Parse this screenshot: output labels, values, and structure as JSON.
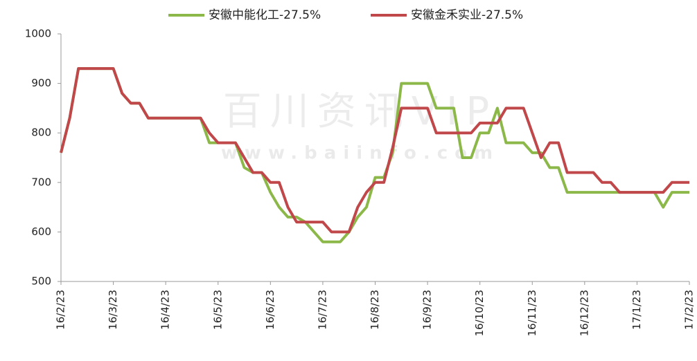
{
  "chart_data": {
    "type": "line",
    "watermark": [
      "百川资讯VIP",
      "www.baiinfo.com"
    ],
    "categories": [
      "16/2/23",
      null,
      null,
      null,
      null,
      null,
      "16/3/23",
      null,
      null,
      null,
      null,
      null,
      "16/4/23",
      null,
      null,
      null,
      null,
      null,
      "16/5/23",
      null,
      null,
      null,
      null,
      null,
      "16/6/23",
      null,
      null,
      null,
      null,
      null,
      "16/7/23",
      null,
      null,
      null,
      null,
      null,
      "16/8/23",
      null,
      null,
      null,
      null,
      null,
      "16/9/23",
      null,
      null,
      null,
      null,
      null,
      "16/10/23",
      null,
      null,
      null,
      null,
      null,
      "16/11/23",
      null,
      null,
      null,
      null,
      null,
      "16/12/23",
      null,
      null,
      null,
      null,
      null,
      "17/1/23",
      null,
      null,
      null,
      null,
      null,
      "17/2/23"
    ],
    "series": [
      {
        "name": "安徽中能化工-27.5%",
        "color": "#8cb84a",
        "values": [
          760,
          830,
          930,
          930,
          930,
          930,
          930,
          880,
          860,
          860,
          830,
          830,
          830,
          830,
          830,
          830,
          830,
          780,
          780,
          780,
          780,
          730,
          720,
          720,
          680,
          650,
          630,
          630,
          620,
          600,
          580,
          580,
          580,
          600,
          630,
          650,
          710,
          710,
          760,
          900,
          900,
          900,
          900,
          850,
          850,
          850,
          750,
          750,
          800,
          800,
          850,
          780,
          780,
          780,
          760,
          760,
          730,
          730,
          680,
          680,
          680,
          680,
          680,
          680,
          680,
          680,
          680,
          680,
          680,
          650,
          680,
          680,
          680
        ]
      },
      {
        "name": "安徽金禾实业-27.5%",
        "color": "#c0474a",
        "values": [
          760,
          830,
          930,
          930,
          930,
          930,
          930,
          880,
          860,
          860,
          830,
          830,
          830,
          830,
          830,
          830,
          830,
          800,
          780,
          780,
          780,
          750,
          720,
          720,
          700,
          700,
          650,
          620,
          620,
          620,
          620,
          600,
          600,
          600,
          650,
          680,
          700,
          700,
          770,
          850,
          850,
          850,
          850,
          800,
          800,
          800,
          800,
          800,
          820,
          820,
          820,
          850,
          850,
          850,
          800,
          750,
          780,
          780,
          720,
          720,
          720,
          720,
          700,
          700,
          680,
          680,
          680,
          680,
          680,
          680,
          700,
          700,
          700
        ]
      }
    ],
    "ylim": [
      500,
      1000
    ],
    "yticks": [
      500,
      600,
      700,
      800,
      900,
      1000
    ],
    "grid": false,
    "legend": "top"
  }
}
